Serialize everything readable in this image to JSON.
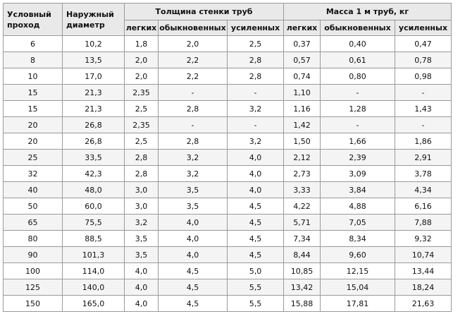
{
  "headers": {
    "dn": "Условный проход",
    "outer_diameter": "Наружный диаметр",
    "wall_group": "Толщина стенки труб",
    "mass_group": "Масса 1 м труб, кг",
    "sub": [
      "легких",
      "обыкновенных",
      "усиленных",
      "легких",
      "обыкновенных",
      "усиленных"
    ]
  },
  "rows": [
    [
      "6",
      "10,2",
      "1,8",
      "2,0",
      "2,5",
      "0,37",
      "0,40",
      "0,47"
    ],
    [
      "8",
      "13,5",
      "2,0",
      "2,2",
      "2,8",
      "0,57",
      "0,61",
      "0,78"
    ],
    [
      "10",
      "17,0",
      "2,0",
      "2,2",
      "2,8",
      "0,74",
      "0,80",
      "0,98"
    ],
    [
      "15",
      "21,3",
      "2,35",
      "-",
      "-",
      "1,10",
      "-",
      "-"
    ],
    [
      "15",
      "21,3",
      "2,5",
      "2,8",
      "3,2",
      "1,16",
      "1,28",
      "1,43"
    ],
    [
      "20",
      "26,8",
      "2,35",
      "-",
      "-",
      "1,42",
      "-",
      "-"
    ],
    [
      "20",
      "26,8",
      "2,5",
      "2,8",
      "3,2",
      "1,50",
      "1,66",
      "1,86"
    ],
    [
      "25",
      "33,5",
      "2,8",
      "3,2",
      "4,0",
      "2,12",
      "2,39",
      "2,91"
    ],
    [
      "32",
      "42,3",
      "2,8",
      "3,2",
      "4,0",
      "2,73",
      "3,09",
      "3,78"
    ],
    [
      "40",
      "48,0",
      "3,0",
      "3,5",
      "4,0",
      "3,33",
      "3,84",
      "4,34"
    ],
    [
      "50",
      "60,0",
      "3,0",
      "3,5",
      "4,5",
      "4,22",
      "4,88",
      "6,16"
    ],
    [
      "65",
      "75,5",
      "3,2",
      "4,0",
      "4,5",
      "5,71",
      "7,05",
      "7,88"
    ],
    [
      "80",
      "88,5",
      "3,5",
      "4,0",
      "4,5",
      "7,34",
      "8,34",
      "9,32"
    ],
    [
      "90",
      "101,3",
      "3,5",
      "4,0",
      "4,5",
      "8,44",
      "9,60",
      "10,74"
    ],
    [
      "100",
      "114,0",
      "4,0",
      "4,5",
      "5,0",
      "10,85",
      "12,15",
      "13,44"
    ],
    [
      "125",
      "140,0",
      "4,0",
      "4,5",
      "5,5",
      "13,42",
      "15,04",
      "18,24"
    ],
    [
      "150",
      "165,0",
      "4,0",
      "4,5",
      "5,5",
      "15,88",
      "17,81",
      "21,63"
    ]
  ]
}
